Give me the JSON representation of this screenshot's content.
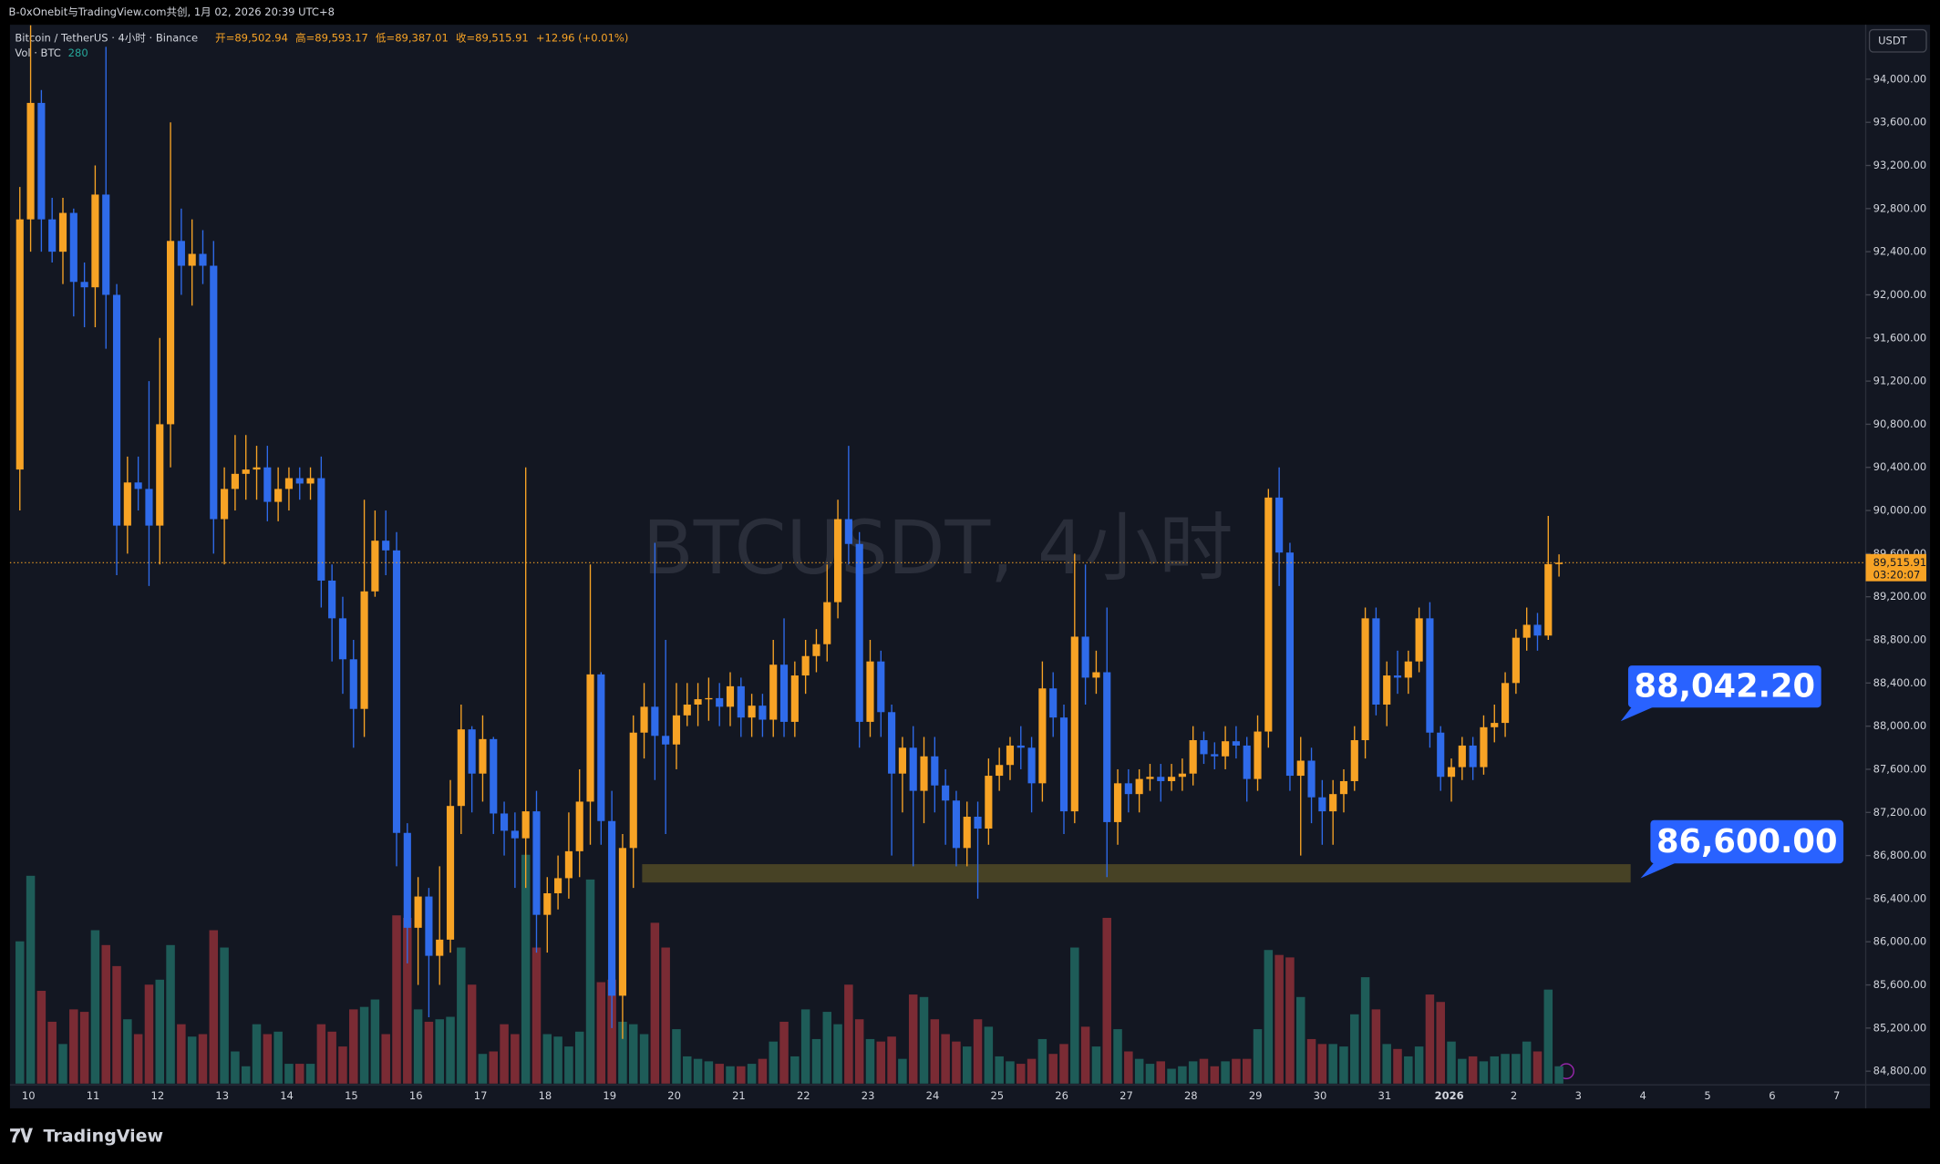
{
  "header": "B-0xOnebit与TradingView.com共创, 1月 02, 2026 20:39 UTC+8",
  "footer": "TradingView",
  "chart_data": {
    "type": "candlestick",
    "symbol": "Bitcoin / TetherUS · 4小时 · Binance",
    "legend_values": [
      "开=89,502.94",
      "高=89,593.17",
      "低=89,387.01",
      "收=89,515.91",
      "+12.96 (+0.01%)"
    ],
    "volume_title": "Vol · BTC",
    "watermark": "BTCUSDT, 4小时",
    "currency": "USDT",
    "last_price_label": "89,515.91",
    "countdown": "03:20:07",
    "up_color": "#f7a325",
    "down_color": "#2f6bea",
    "volume_up_color": "#1e5c58",
    "volume_down_color": "#7a2b34",
    "ylim": [
      84685,
      94505
    ],
    "yticks": [
      {
        "value": 84800,
        "label": "84,800.00"
      },
      {
        "value": 85200,
        "label": "85,200.00"
      },
      {
        "value": 85600,
        "label": "85,600.00"
      },
      {
        "value": 86000,
        "label": "86,000.00"
      },
      {
        "value": 86400,
        "label": "86,400.00"
      },
      {
        "value": 86800,
        "label": "86,800.00"
      },
      {
        "value": 87200,
        "label": "87,200.00"
      },
      {
        "value": 87600,
        "label": "87,600.00"
      },
      {
        "value": 88000,
        "label": "88,000.00"
      },
      {
        "value": 88400,
        "label": "88,400.00"
      },
      {
        "value": 88800,
        "label": "88,800.00"
      },
      {
        "value": 89200,
        "label": "89,200.00"
      },
      {
        "value": 89600,
        "label": "89,600.00"
      },
      {
        "value": 90000,
        "label": "90,000.00"
      },
      {
        "value": 90400,
        "label": "90,400.00"
      },
      {
        "value": 90800,
        "label": "90,800.00"
      },
      {
        "value": 91200,
        "label": "91,200.00"
      },
      {
        "value": 91600,
        "label": "91,600.00"
      },
      {
        "value": 92000,
        "label": "92,000.00"
      },
      {
        "value": 92400,
        "label": "92,400.00"
      },
      {
        "value": 92800,
        "label": "92,800.00"
      },
      {
        "value": 93200,
        "label": "93,200.00"
      },
      {
        "value": 93600,
        "label": "93,600.00"
      },
      {
        "value": 94000,
        "label": "94,000.00"
      }
    ],
    "x_labels": [
      "10",
      "11",
      "12",
      "13",
      "14",
      "15",
      "16",
      "17",
      "18",
      "19",
      "20",
      "21",
      "22",
      "23",
      "24",
      "25",
      "26",
      "27",
      "28",
      "29",
      "30",
      "31",
      "2026",
      "2",
      "3",
      "4",
      "5",
      "6",
      "7"
    ],
    "annotations": [
      {
        "value": 88042.2,
        "label": "88,042.20"
      },
      {
        "value": 86600,
        "label": "86,600.00"
      }
    ],
    "zone": [
      86550,
      86720
    ],
    "ohlc": [
      [
        90380,
        93000,
        90000,
        92700
      ],
      [
        92700,
        94500,
        92400,
        93780
      ],
      [
        93780,
        93900,
        92400,
        92700
      ],
      [
        92700,
        92900,
        92300,
        92400
      ],
      [
        92400,
        92900,
        92100,
        92760
      ],
      [
        92760,
        92800,
        91800,
        92120
      ],
      [
        92120,
        92300,
        91700,
        92070
      ],
      [
        92070,
        93200,
        91700,
        92930
      ],
      [
        92930,
        94300,
        91500,
        92000
      ],
      [
        92000,
        92100,
        89400,
        89860
      ],
      [
        89860,
        90500,
        89600,
        90260
      ],
      [
        90260,
        90500,
        90000,
        90200
      ],
      [
        90200,
        91200,
        89300,
        89860
      ],
      [
        89860,
        91600,
        89500,
        90800
      ],
      [
        90800,
        93600,
        90400,
        92500
      ],
      [
        92500,
        92800,
        92000,
        92270
      ],
      [
        92270,
        92700,
        91900,
        92380
      ],
      [
        92380,
        92600,
        92100,
        92270
      ],
      [
        92270,
        92500,
        89600,
        89920
      ],
      [
        89920,
        90400,
        89500,
        90200
      ],
      [
        90200,
        90700,
        90000,
        90340
      ],
      [
        90340,
        90700,
        90100,
        90380
      ],
      [
        90380,
        90600,
        90100,
        90400
      ],
      [
        90400,
        90600,
        89900,
        90080
      ],
      [
        90080,
        90400,
        89900,
        90200
      ],
      [
        90200,
        90400,
        90000,
        90300
      ],
      [
        90300,
        90400,
        90100,
        90250
      ],
      [
        90250,
        90400,
        90100,
        90300
      ],
      [
        90300,
        90500,
        89100,
        89350
      ],
      [
        89350,
        89500,
        88600,
        89000
      ],
      [
        89000,
        89200,
        88300,
        88620
      ],
      [
        88620,
        88800,
        87800,
        88160
      ],
      [
        88160,
        90100,
        87900,
        89250
      ],
      [
        89250,
        90000,
        89200,
        89720
      ],
      [
        89720,
        90000,
        89400,
        89630
      ],
      [
        89630,
        89800,
        86700,
        87010
      ],
      [
        87010,
        87100,
        85800,
        86130
      ],
      [
        86130,
        86600,
        85600,
        86420
      ],
      [
        86420,
        86500,
        85300,
        85870
      ],
      [
        85870,
        86700,
        85600,
        86020
      ],
      [
        86020,
        87500,
        85900,
        87260
      ],
      [
        87260,
        88200,
        87000,
        87970
      ],
      [
        87970,
        88000,
        87200,
        87560
      ],
      [
        87560,
        88100,
        87300,
        87880
      ],
      [
        87880,
        87900,
        87000,
        87190
      ],
      [
        87190,
        87300,
        86800,
        87030
      ],
      [
        87030,
        87200,
        86500,
        86960
      ],
      [
        86960,
        90400,
        86500,
        87210
      ],
      [
        87210,
        87400,
        85900,
        86250
      ],
      [
        86250,
        86600,
        85900,
        86450
      ],
      [
        86450,
        86800,
        86300,
        86590
      ],
      [
        86590,
        87200,
        86400,
        86840
      ],
      [
        86840,
        87600,
        86600,
        87300
      ],
      [
        87300,
        89500,
        86900,
        88480
      ],
      [
        88480,
        88500,
        86900,
        87120
      ],
      [
        87120,
        87400,
        85200,
        85500
      ],
      [
        85500,
        87000,
        85100,
        86870
      ],
      [
        86870,
        88100,
        86500,
        87940
      ],
      [
        87940,
        88400,
        87700,
        88180
      ],
      [
        88180,
        89700,
        87500,
        87910
      ],
      [
        87910,
        88800,
        87000,
        87830
      ],
      [
        87830,
        88400,
        87600,
        88100
      ],
      [
        88100,
        88400,
        88000,
        88200
      ],
      [
        88200,
        88400,
        88000,
        88250
      ],
      [
        88250,
        88450,
        88050,
        88260
      ],
      [
        88260,
        88400,
        88000,
        88180
      ],
      [
        88180,
        88500,
        88000,
        88370
      ],
      [
        88370,
        88450,
        87900,
        88080
      ],
      [
        88080,
        88300,
        87900,
        88190
      ],
      [
        88190,
        88300,
        87900,
        88060
      ],
      [
        88060,
        88800,
        87900,
        88570
      ],
      [
        88570,
        89000,
        87900,
        88040
      ],
      [
        88040,
        88600,
        87900,
        88470
      ],
      [
        88470,
        88800,
        88300,
        88650
      ],
      [
        88650,
        88900,
        88500,
        88760
      ],
      [
        88760,
        89500,
        88600,
        89150
      ],
      [
        89150,
        90100,
        89000,
        89920
      ],
      [
        89920,
        90600,
        89500,
        89690
      ],
      [
        89690,
        89800,
        87800,
        88040
      ],
      [
        88040,
        88800,
        87900,
        88600
      ],
      [
        88600,
        88700,
        87900,
        88130
      ],
      [
        88130,
        88200,
        86800,
        87560
      ],
      [
        87560,
        87900,
        87200,
        87800
      ],
      [
        87800,
        88000,
        86700,
        87400
      ],
      [
        87400,
        87900,
        87100,
        87720
      ],
      [
        87720,
        87900,
        87200,
        87450
      ],
      [
        87450,
        87600,
        86900,
        87310
      ],
      [
        87310,
        87400,
        86700,
        86870
      ],
      [
        86870,
        87300,
        86700,
        87160
      ],
      [
        87160,
        87300,
        86400,
        87050
      ],
      [
        87050,
        87700,
        86900,
        87540
      ],
      [
        87540,
        87800,
        87400,
        87640
      ],
      [
        87640,
        87900,
        87500,
        87820
      ],
      [
        87820,
        88000,
        87600,
        87800
      ],
      [
        87800,
        87900,
        87200,
        87470
      ],
      [
        87470,
        88600,
        87300,
        88350
      ],
      [
        88350,
        88500,
        87900,
        88080
      ],
      [
        88080,
        88200,
        87000,
        87210
      ],
      [
        87210,
        89600,
        87100,
        88830
      ],
      [
        88830,
        89500,
        88200,
        88450
      ],
      [
        88450,
        88700,
        88300,
        88500
      ],
      [
        88500,
        89100,
        86600,
        87110
      ],
      [
        87110,
        87600,
        86900,
        87470
      ],
      [
        87470,
        87600,
        87200,
        87370
      ],
      [
        87370,
        87600,
        87200,
        87510
      ],
      [
        87510,
        87650,
        87400,
        87530
      ],
      [
        87530,
        87650,
        87300,
        87490
      ],
      [
        87490,
        87650,
        87400,
        87530
      ],
      [
        87530,
        87700,
        87400,
        87560
      ],
      [
        87560,
        88000,
        87450,
        87870
      ],
      [
        87870,
        87950,
        87650,
        87740
      ],
      [
        87740,
        87850,
        87600,
        87720
      ],
      [
        87720,
        88000,
        87600,
        87860
      ],
      [
        87860,
        88000,
        87700,
        87820
      ],
      [
        87820,
        87900,
        87300,
        87510
      ],
      [
        87510,
        88100,
        87400,
        87950
      ],
      [
        87950,
        90200,
        87800,
        90120
      ],
      [
        90120,
        90400,
        89300,
        89610
      ],
      [
        89610,
        89700,
        87400,
        87540
      ],
      [
        87540,
        87900,
        86800,
        87680
      ],
      [
        87680,
        87800,
        87100,
        87340
      ],
      [
        87340,
        87500,
        86900,
        87210
      ],
      [
        87210,
        87500,
        86900,
        87370
      ],
      [
        87370,
        87600,
        87200,
        87490
      ],
      [
        87490,
        88000,
        87400,
        87870
      ],
      [
        87870,
        89100,
        87700,
        89000
      ],
      [
        89000,
        89100,
        88100,
        88200
      ],
      [
        88200,
        88600,
        88000,
        88470
      ],
      [
        88470,
        88700,
        88300,
        88450
      ],
      [
        88450,
        88700,
        88300,
        88600
      ],
      [
        88600,
        89100,
        88500,
        89000
      ],
      [
        89000,
        89150,
        87800,
        87940
      ],
      [
        87940,
        88000,
        87400,
        87530
      ],
      [
        87530,
        87700,
        87300,
        87620
      ],
      [
        87620,
        87900,
        87500,
        87820
      ],
      [
        87820,
        87900,
        87500,
        87620
      ],
      [
        87620,
        88100,
        87550,
        87990
      ],
      [
        87990,
        88200,
        87850,
        88030
      ],
      [
        88030,
        88500,
        87900,
        88400
      ],
      [
        88400,
        88900,
        88300,
        88820
      ],
      [
        88820,
        89100,
        88700,
        88940
      ],
      [
        88940,
        89050,
        88700,
        88840
      ],
      [
        88840,
        89950,
        88800,
        89502.94
      ],
      [
        89502.94,
        89593.17,
        89387.01,
        89515.91
      ]
    ],
    "volume": [
      2300,
      3360,
      1500,
      1000,
      640,
      1200,
      1160,
      2480,
      2240,
      1900,
      1040,
      800,
      1600,
      1680,
      2240,
      960,
      760,
      800,
      2480,
      2200,
      520,
      280,
      960,
      800,
      840,
      320,
      320,
      320,
      960,
      840,
      600,
      1200,
      1240,
      1360,
      800,
      2720,
      2680,
      1200,
      1000,
      1040,
      1080,
      2200,
      1600,
      480,
      520,
      960,
      800,
      3700,
      2200,
      800,
      760,
      600,
      840,
      3300,
      1640,
      1680,
      1000,
      960,
      800,
      2600,
      2200,
      880,
      440,
      400,
      360,
      320,
      280,
      280,
      320,
      400,
      680,
      1000,
      440,
      1200,
      720,
      1160,
      960,
      1600,
      1040,
      720,
      680,
      760,
      400,
      1440,
      1400,
      1040,
      800,
      680,
      600,
      1040,
      920,
      440,
      360,
      320,
      400,
      720,
      480,
      640,
      2200,
      920,
      600,
      2680,
      880,
      520,
      400,
      320,
      360,
      240,
      280,
      360,
      400,
      280,
      360,
      400,
      400,
      880,
      2160,
      2080,
      2040,
      1400,
      720,
      640,
      640,
      600,
      1120,
      1720,
      1200,
      640,
      560,
      440,
      600,
      1440,
      1320,
      680,
      400,
      440,
      360,
      440,
      480,
      480,
      680,
      520,
      1520,
      280
    ]
  }
}
